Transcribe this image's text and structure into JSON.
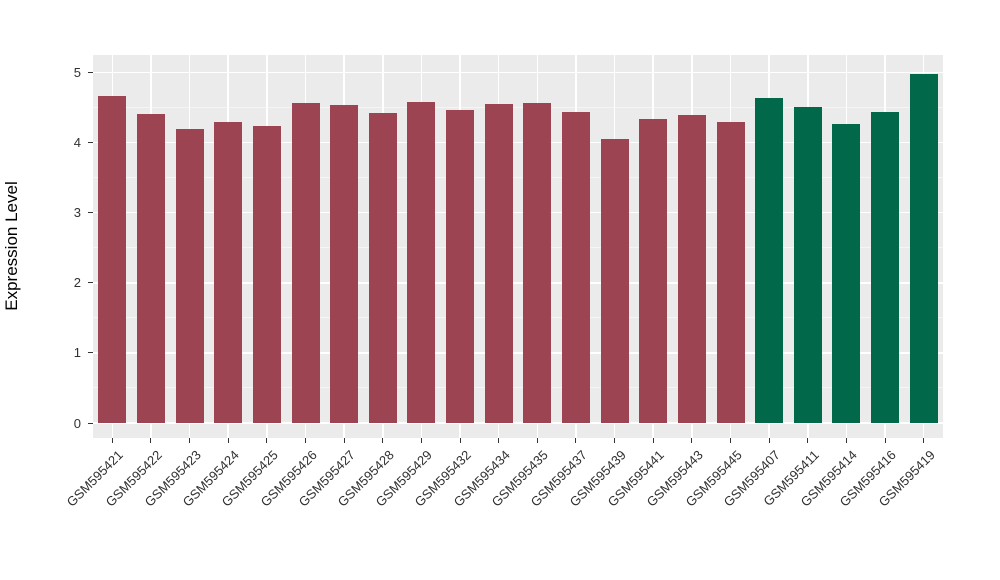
{
  "chart_data": {
    "type": "bar",
    "title": "",
    "xlabel": "",
    "ylabel": "Expression Level",
    "ylim": [
      0,
      5
    ],
    "yticks": [
      0,
      1,
      2,
      3,
      4,
      5
    ],
    "grid": "on",
    "legend": "none",
    "categories": [
      "GSM595421",
      "GSM595422",
      "GSM595423",
      "GSM595424",
      "GSM595425",
      "GSM595426",
      "GSM595427",
      "GSM595428",
      "GSM595429",
      "GSM595432",
      "GSM595434",
      "GSM595435",
      "GSM595437",
      "GSM595439",
      "GSM595441",
      "GSM595443",
      "GSM595445",
      "GSM595407",
      "GSM595411",
      "GSM595414",
      "GSM595416",
      "GSM595419"
    ],
    "values": [
      4.66,
      4.41,
      4.2,
      4.3,
      4.24,
      4.57,
      4.53,
      4.42,
      4.58,
      4.46,
      4.55,
      4.57,
      4.43,
      4.05,
      4.34,
      4.39,
      4.3,
      4.64,
      4.51,
      4.27,
      4.44,
      4.98
    ],
    "bar_colors": [
      "#9C4451",
      "#9C4451",
      "#9C4451",
      "#9C4451",
      "#9C4451",
      "#9C4451",
      "#9C4451",
      "#9C4451",
      "#9C4451",
      "#9C4451",
      "#9C4451",
      "#9C4451",
      "#9C4451",
      "#9C4451",
      "#9C4451",
      "#9C4451",
      "#9C4451",
      "#01694A",
      "#01694A",
      "#01694A",
      "#01694A",
      "#01694A"
    ]
  },
  "style_colors": {
    "panel_background": "#EBEBEB",
    "grid_major": "#FFFFFF",
    "grid_minor": "#F5F5F5",
    "tick_mark": "#333333",
    "tick_label": "#303030",
    "axis_title": "#000000",
    "page_background": "#FFFFFF"
  }
}
